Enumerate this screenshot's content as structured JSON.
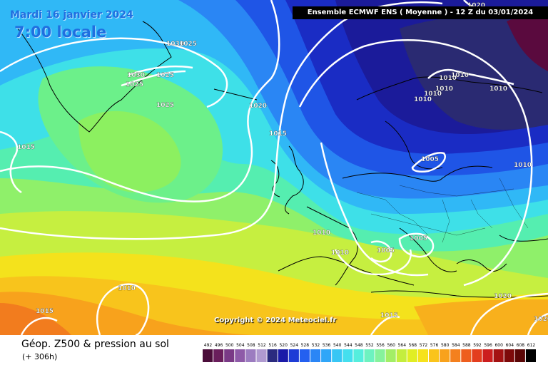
{
  "header": {
    "date": "Mardi 16 janvier 2024",
    "time": "7:00 locale",
    "model": "Ensemble ECMWF ENS  ( Moyenne )  -  12 Z du 03/01/2024"
  },
  "copyright": "Copyright © 2024 Meteociel.fr",
  "footer": {
    "variable": "Géop. Z500 & pression au sol",
    "lead": "(+ 306h)"
  },
  "isobar_labels": [
    "1030",
    "1025",
    "1030",
    "1025",
    "1025",
    "1025",
    "1020",
    "1015",
    "1015",
    "1020",
    "1010",
    "1010",
    "1010",
    "1010",
    "1010",
    "1010",
    "1005",
    "1010",
    "1010",
    "1010",
    "1005",
    "1005",
    "1010",
    "1015",
    "1020",
    "1015",
    "1020"
  ],
  "legend": {
    "values": [
      "492",
      "496",
      "500",
      "504",
      "508",
      "512",
      "516",
      "520",
      "524",
      "528",
      "532",
      "536",
      "540",
      "544",
      "548",
      "552",
      "556",
      "560",
      "564",
      "568",
      "572",
      "576",
      "580",
      "584",
      "588",
      "592",
      "596",
      "600",
      "604",
      "608",
      "612"
    ],
    "colors": [
      "#4b0d3a",
      "#6a1e5c",
      "#7a3a86",
      "#8e5aa8",
      "#9c7cc0",
      "#b09ad0",
      "#2b2b7f",
      "#1a1aa8",
      "#1e3cd6",
      "#2460f0",
      "#2a86f6",
      "#2fa6f8",
      "#38c6f4",
      "#44dfee",
      "#55eedd",
      "#6df2c0",
      "#86f29c",
      "#a3ee66",
      "#c4ee3e",
      "#e1ee24",
      "#f6e21c",
      "#fac41c",
      "#f8a21c",
      "#f4801e",
      "#ee5e1e",
      "#e33e1e",
      "#cc1e1e",
      "#a41212",
      "#7e0a0a",
      "#5a0606",
      "#000000"
    ]
  }
}
